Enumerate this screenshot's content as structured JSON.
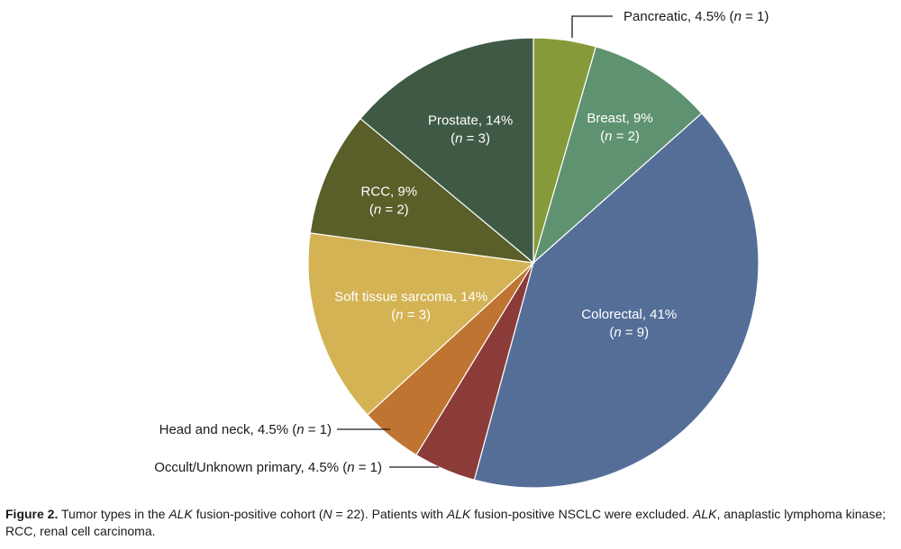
{
  "chart_data": {
    "type": "pie",
    "title": "",
    "total": "N = 22",
    "slices": [
      {
        "label": "Pancreatic",
        "percent_text": "4.5%",
        "n": 1,
        "value": 4.5,
        "color": "#869a3a",
        "label_position": "outside"
      },
      {
        "label": "Breast",
        "percent_text": "9%",
        "n": 2,
        "value": 9,
        "color": "#5f9270",
        "label_position": "inside"
      },
      {
        "label": "Colorectal",
        "percent_text": "41%",
        "n": 9,
        "value": 41,
        "color": "#546e98",
        "label_position": "inside"
      },
      {
        "label": "Occult/Unknown primary",
        "percent_text": "4.5%",
        "n": 1,
        "value": 4.5,
        "color": "#8b3b38",
        "label_position": "outside"
      },
      {
        "label": "Head and neck",
        "percent_text": "4.5%",
        "n": 1,
        "value": 4.5,
        "color": "#bf7431",
        "label_position": "outside"
      },
      {
        "label": "Soft tissue sarcoma",
        "percent_text": "14%",
        "n": 3,
        "value": 14,
        "color": "#d4b354",
        "label_position": "inside"
      },
      {
        "label": "RCC",
        "percent_text": "9%",
        "n": 2,
        "value": 9,
        "color": "#5a5e28",
        "label_position": "inside"
      },
      {
        "label": "Prostate",
        "percent_text": "14%",
        "n": 3,
        "value": 14,
        "color": "#3e5a45",
        "label_position": "inside"
      }
    ]
  },
  "caption": {
    "figure_label": "Figure 2.",
    "t1": " Tumor types in the ",
    "alk1": "ALK",
    "t2": " fusion-positive cohort (",
    "n_var": "N",
    "t3": " = 22). Patients with ",
    "alk2": "ALK",
    "t4": " fusion-positive NSCLC were excluded. ",
    "alk3": "ALK",
    "t5": ", anaplastic lymphoma kinase; RCC, renal cell carcinoma."
  }
}
